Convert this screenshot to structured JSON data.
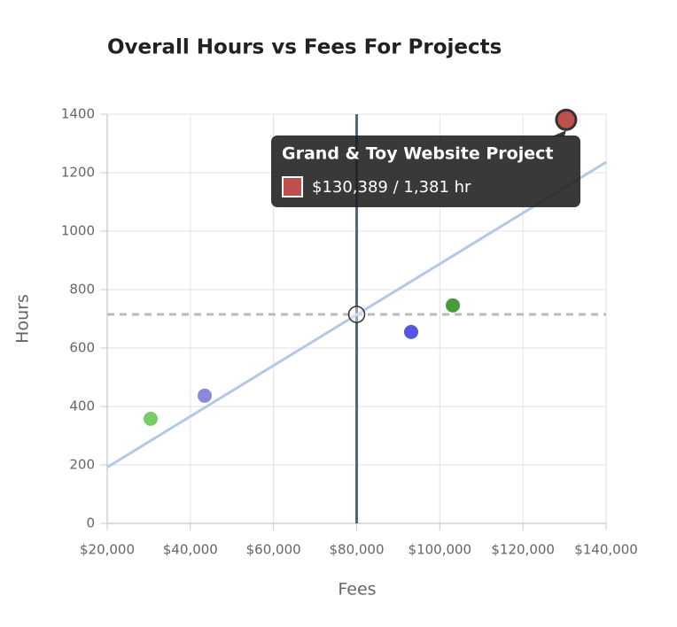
{
  "chart_data": {
    "type": "scatter",
    "title": "Overall Hours vs Fees For Projects",
    "xlabel": "Fees",
    "ylabel": "Hours",
    "x": [
      30444,
      43446,
      93108,
      103126,
      130389
    ],
    "y": [
      358,
      437,
      655,
      746,
      1381
    ],
    "colors": [
      "#77cc66",
      "#8e88d8",
      "#5555e6",
      "#4a9a3c",
      "#c0504d"
    ],
    "xlim": [
      20000,
      140000
    ],
    "ylim": [
      0,
      1400
    ],
    "xticks": [
      {
        "value": 20000,
        "label": "$20,000"
      },
      {
        "value": 40000,
        "label": "$40,000"
      },
      {
        "value": 60000,
        "label": "$60,000"
      },
      {
        "value": 80000,
        "label": "$80,000"
      },
      {
        "value": 100000,
        "label": "$100,000"
      },
      {
        "value": 120000,
        "label": "$120,000"
      },
      {
        "value": 140000,
        "label": "$140,000"
      }
    ],
    "yticks": [
      0,
      200,
      400,
      600,
      800,
      1000,
      1200,
      1400
    ],
    "grid": true,
    "mean_x": 80000,
    "mean_y": 715,
    "trend": {
      "x": [
        20000,
        140000
      ],
      "y": [
        192,
        1236
      ],
      "color": "#b4c8e6"
    },
    "highlight": 4,
    "tooltip": {
      "title": "Grand & Toy Website Project",
      "label": "$130,389 / 1,381 hr"
    }
  }
}
